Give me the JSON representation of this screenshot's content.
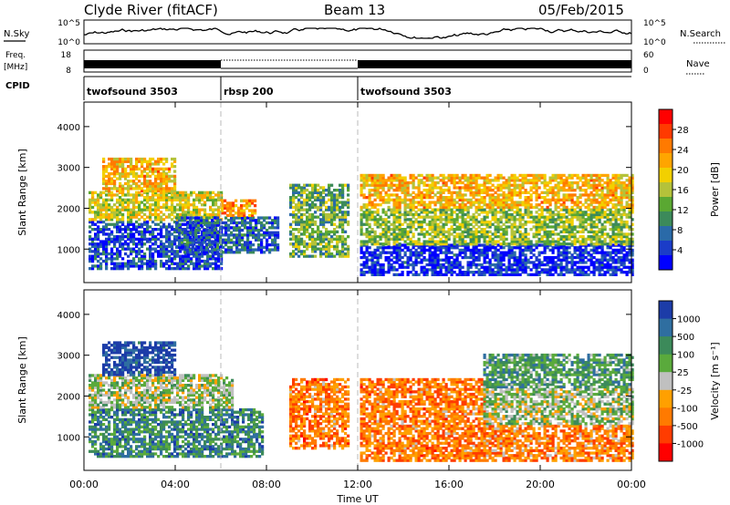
{
  "header": {
    "station": "Clyde River (fitACF)",
    "beam": "Beam 13",
    "date": "05/Feb/2015"
  },
  "top_panels": {
    "nsky_label": "N.Sky",
    "nsearch_label": "N.Search",
    "freq_label_1": "Freq.",
    "freq_label_2": "[MHz]",
    "nave_label": "Nave",
    "cpid_label": "CPID",
    "nsky_ticks": [
      "10^5",
      "10^0"
    ],
    "nsearch_ticks": [
      "10^5",
      "10^0"
    ],
    "freq_ticks": [
      "18",
      "8"
    ],
    "nave_ticks": [
      "60",
      "0"
    ]
  },
  "cpid_segments": [
    {
      "name": "twofsound 3503",
      "start_hour": 0,
      "end_hour": 6
    },
    {
      "name": "rbsp 200",
      "start_hour": 6,
      "end_hour": 12
    },
    {
      "name": "twofsound 3503",
      "start_hour": 12,
      "end_hour": 24
    }
  ],
  "chart_data": [
    {
      "type": "heatmap",
      "quantity": "Power",
      "ylabel": "Slant Range [km]",
      "xlabel": "Time UT",
      "x_ticks": [
        "00:00",
        "04:00",
        "08:00",
        "12:00",
        "16:00",
        "20:00",
        "00:00"
      ],
      "xlim_hours": [
        0,
        24
      ],
      "y_ticks": [
        1000,
        2000,
        3000,
        4000
      ],
      "ylim": [
        180,
        4600
      ],
      "colorbar": {
        "label": "Power [dB]",
        "ticks": [
          "28",
          "24",
          "20",
          "16",
          "12",
          "8",
          "4"
        ],
        "colors": [
          "#ff0000",
          "#ff3a00",
          "#ff7a00",
          "#ffa500",
          "#f2d000",
          "#b4c23a",
          "#5aa832",
          "#3c8a5a",
          "#2a6aa8",
          "#1b3cc8",
          "#0000ff"
        ]
      },
      "regions": [
        {
          "t0": 0.2,
          "t1": 6.0,
          "r0": 500,
          "r1": 1700,
          "level": 0.85
        },
        {
          "t0": 0.2,
          "t1": 6.0,
          "r0": 1700,
          "r1": 2400,
          "level": 0.45
        },
        {
          "t0": 0.8,
          "t1": 4.0,
          "r0": 2400,
          "r1": 3200,
          "level": 0.35
        },
        {
          "t0": 4.0,
          "t1": 8.5,
          "r0": 900,
          "r1": 1800,
          "level": 0.8
        },
        {
          "t0": 6.0,
          "t1": 7.5,
          "r0": 1800,
          "r1": 2200,
          "level": 0.3
        },
        {
          "t0": 9.0,
          "t1": 11.6,
          "r0": 800,
          "r1": 2600,
          "level": 0.6
        },
        {
          "t0": 12.1,
          "t1": 24.0,
          "r0": 350,
          "r1": 1100,
          "level": 0.9
        },
        {
          "t0": 12.1,
          "t1": 24.0,
          "r0": 1100,
          "r1": 2000,
          "level": 0.55
        },
        {
          "t0": 12.1,
          "t1": 24.0,
          "r0": 2000,
          "r1": 2800,
          "level": 0.35
        }
      ]
    },
    {
      "type": "heatmap",
      "quantity": "Velocity",
      "ylabel": "Slant Range [km]",
      "xlabel": "Time UT",
      "x_ticks": [
        "00:00",
        "04:00",
        "08:00",
        "12:00",
        "16:00",
        "20:00",
        "00:00"
      ],
      "xlim_hours": [
        0,
        24
      ],
      "y_ticks": [
        1000,
        2000,
        3000,
        4000
      ],
      "ylim": [
        180,
        4600
      ],
      "colorbar": {
        "label": "Velocity [m s⁻¹]",
        "ticks": [
          "1000",
          "500",
          "100",
          "25",
          "-25",
          "-100",
          "-500",
          "-1000"
        ],
        "colors": [
          "#1c3ca8",
          "#2f6ea0",
          "#3c8a5a",
          "#5aaa3c",
          "#c0c0c0",
          "#ffa000",
          "#ff7a00",
          "#ff3c00",
          "#ff0000"
        ]
      },
      "regions": [
        {
          "t0": 0.2,
          "t1": 7.8,
          "r0": 500,
          "r1": 1700,
          "level": 0.25
        },
        {
          "t0": 0.2,
          "t1": 6.5,
          "r0": 1700,
          "r1": 2500,
          "level": 0.45
        },
        {
          "t0": 0.8,
          "t1": 4.0,
          "r0": 2500,
          "r1": 3300,
          "level": 0.05
        },
        {
          "t0": 9.0,
          "t1": 11.6,
          "r0": 700,
          "r1": 2400,
          "level": 0.72
        },
        {
          "t0": 12.1,
          "t1": 17.5,
          "r0": 400,
          "r1": 2400,
          "level": 0.72
        },
        {
          "t0": 17.5,
          "t1": 24.0,
          "r0": 400,
          "r1": 1300,
          "level": 0.7
        },
        {
          "t0": 17.5,
          "t1": 24.0,
          "r0": 1300,
          "r1": 2200,
          "level": 0.45
        },
        {
          "t0": 17.5,
          "t1": 24.0,
          "r0": 2200,
          "r1": 3000,
          "level": 0.3
        }
      ]
    }
  ]
}
